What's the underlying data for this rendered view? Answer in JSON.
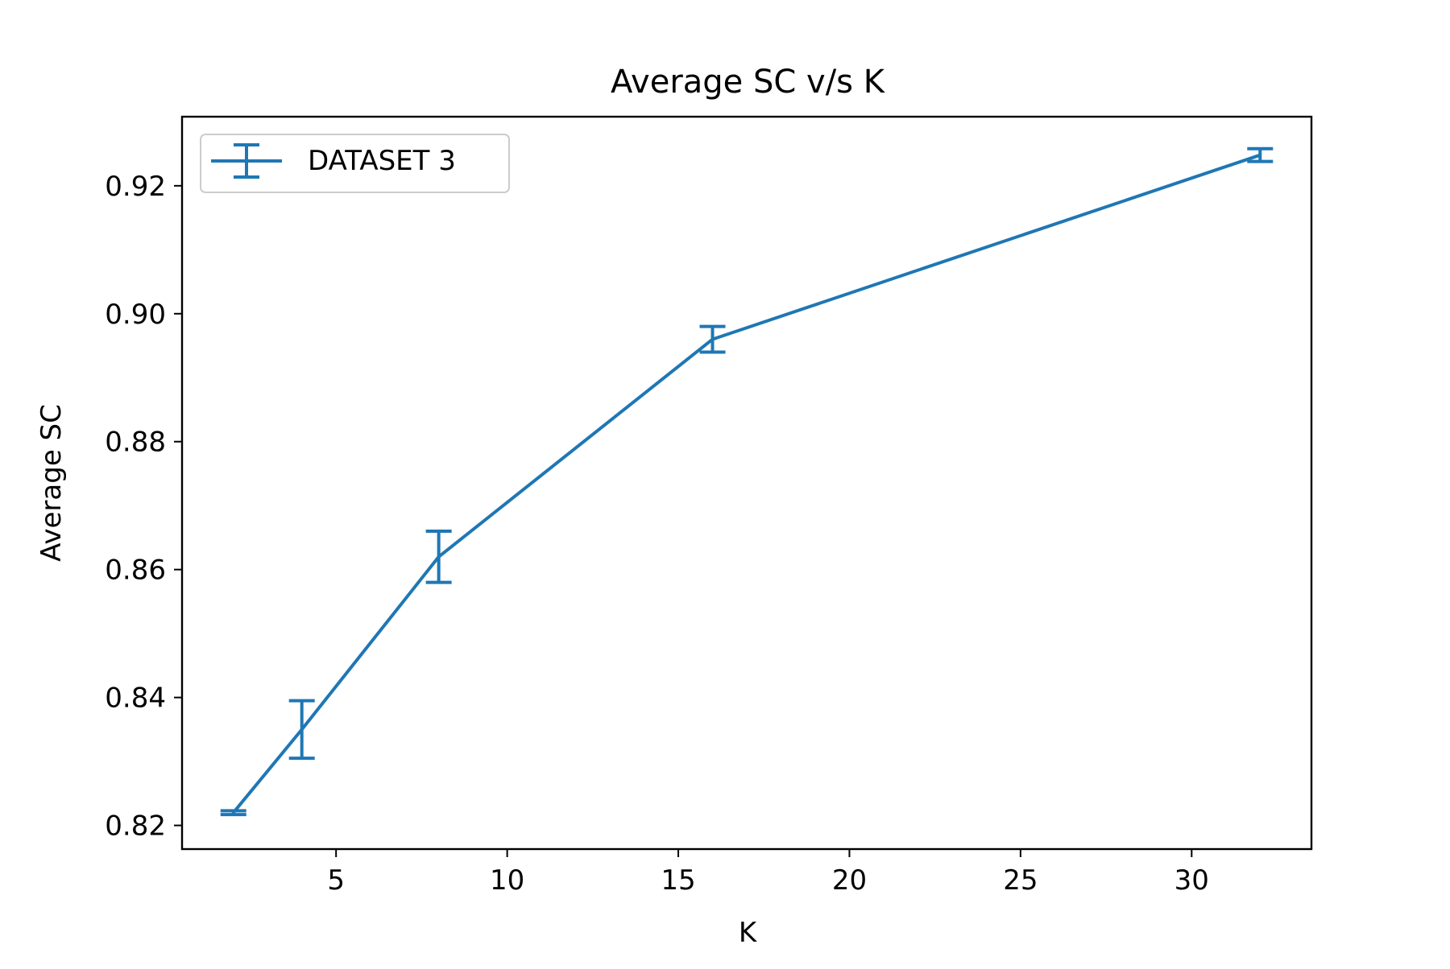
{
  "chart_data": {
    "type": "line",
    "title": "Average SC v/s K",
    "xlabel": "K",
    "ylabel": "Average SC",
    "xlim": [
      0.5,
      33.5
    ],
    "ylim": [
      0.8163,
      0.9308
    ],
    "xticks": [
      5,
      10,
      15,
      20,
      25,
      30
    ],
    "xtick_labels": [
      "5",
      "10",
      "15",
      "20",
      "25",
      "30"
    ],
    "yticks": [
      0.82,
      0.84,
      0.86,
      0.88,
      0.9,
      0.92
    ],
    "ytick_labels": [
      "0.82",
      "0.84",
      "0.86",
      "0.88",
      "0.90",
      "0.92"
    ],
    "grid": false,
    "legend": {
      "location": "upper left",
      "entries": [
        "DATASET 3"
      ]
    },
    "series": [
      {
        "name": "DATASET 3",
        "color": "#1f77b4",
        "x": [
          2,
          4,
          8,
          16,
          32
        ],
        "y": [
          0.822,
          0.835,
          0.862,
          0.896,
          0.9248
        ],
        "yerr": [
          0.0003,
          0.0045,
          0.004,
          0.002,
          0.001
        ]
      }
    ]
  }
}
